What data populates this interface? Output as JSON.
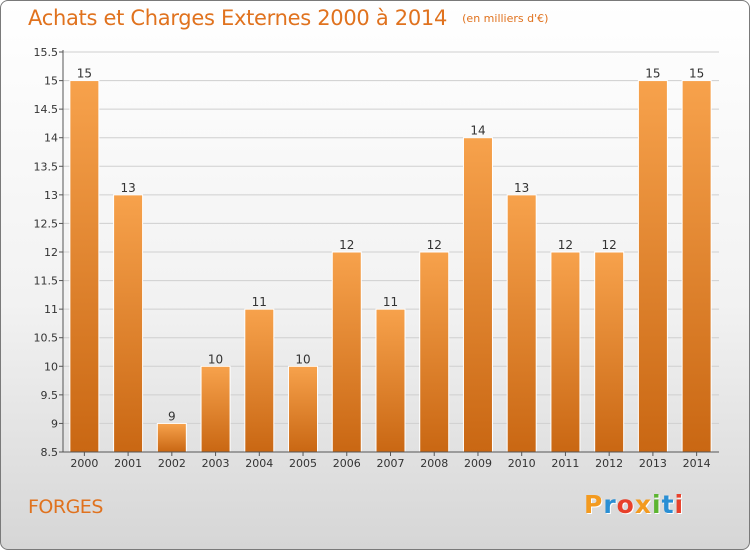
{
  "header": {
    "title": "Achats et Charges Externes 2000 à 2014",
    "unit": "(en milliers d'€)"
  },
  "footer": {
    "commune": "FORGES",
    "logo_text": "Proxiti",
    "logo_colors": [
      "#f39a1f",
      "#2a8fd4",
      "#e8402a",
      "#f39a1f",
      "#5cb531",
      "#2a8fd4",
      "#e8402a"
    ]
  },
  "chart_data": {
    "type": "bar",
    "categories": [
      "2000",
      "2001",
      "2002",
      "2003",
      "2004",
      "2005",
      "2006",
      "2007",
      "2008",
      "2009",
      "2010",
      "2011",
      "2012",
      "2013",
      "2014"
    ],
    "values": [
      15,
      13,
      9,
      10,
      11,
      10,
      12,
      11,
      12,
      14,
      13,
      12,
      12,
      15,
      15
    ],
    "value_labels": [
      "15",
      "13",
      "9",
      "10",
      "11",
      "10",
      "12",
      "11",
      "12",
      "14",
      "13",
      "12",
      "12",
      "15",
      "15"
    ],
    "ylim": [
      8.5,
      15.5
    ],
    "yticks": [
      8.5,
      9,
      9.5,
      10,
      10.5,
      11,
      11.5,
      12,
      12.5,
      13,
      13.5,
      14,
      14.5,
      15,
      15.5
    ],
    "ytick_labels": [
      "8.5",
      "9",
      "9.5",
      "10",
      "10.5",
      "11",
      "11.5",
      "12",
      "12.5",
      "13",
      "13.5",
      "14",
      "14.5",
      "15",
      "15.5"
    ],
    "grid": true,
    "bar_color_top": "#f7a24c",
    "bar_color_bottom": "#c96713",
    "grid_color": "#cfcfcf"
  }
}
